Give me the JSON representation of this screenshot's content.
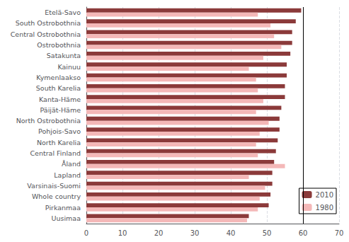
{
  "chart_data": {
    "type": "bar",
    "orientation": "horizontal",
    "categories": [
      "Etelä-Savo",
      "South Ostrobothnia",
      "Central Ostrobothnia",
      "Ostrobothnia",
      "Satakunta",
      "Kainuu",
      "Kymenlaakso",
      "South Karelia",
      "Kanta-Häme",
      "Päijät-Häme",
      "North Ostrobothnia",
      "Pohjois-Savo",
      "North Karelia",
      "Central Finland",
      "Åland",
      "Lapland",
      "Varsinais-Suomi",
      "Whole country",
      "Pirkanmaa",
      "Uusimaa"
    ],
    "series": [
      {
        "name": "2010",
        "color": "#8b3a3a",
        "values": [
          59.5,
          58.0,
          57.0,
          57.0,
          56.5,
          55.5,
          55.5,
          55.0,
          55.0,
          54.0,
          53.5,
          53.5,
          53.0,
          52.5,
          52.0,
          51.5,
          51.5,
          51.0,
          50.5,
          45.0
        ]
      },
      {
        "name": "1980",
        "color": "#f4b8b8",
        "values": [
          47.5,
          51.0,
          52.0,
          54.0,
          49.0,
          45.0,
          47.0,
          47.5,
          49.0,
          47.0,
          50.5,
          48.0,
          47.0,
          47.5,
          55.0,
          45.0,
          49.5,
          48.0,
          47.5,
          44.5
        ]
      }
    ],
    "xlim": [
      0,
      70
    ],
    "xticks": [
      0,
      10,
      20,
      30,
      40,
      50,
      60,
      70
    ],
    "vline_x": 60,
    "grid": true,
    "legend": "lower right"
  }
}
